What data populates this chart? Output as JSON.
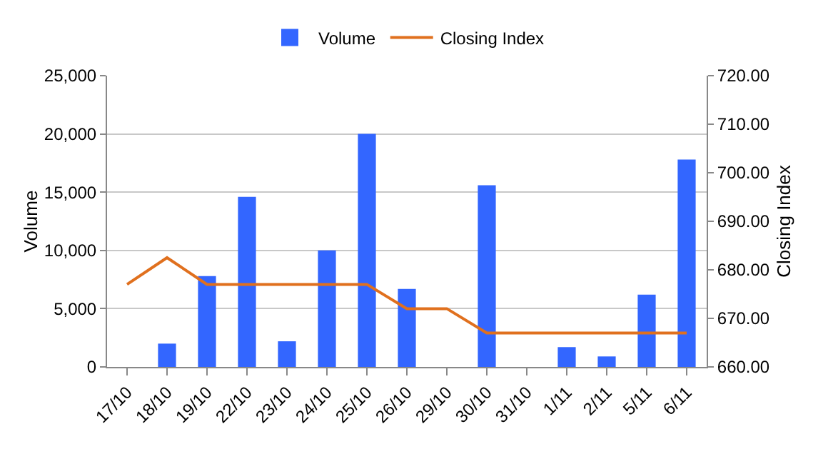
{
  "chart_data": {
    "type": "bar",
    "categories": [
      "17/10",
      "18/10",
      "19/10",
      "22/10",
      "23/10",
      "24/10",
      "25/10",
      "26/10",
      "29/10",
      "30/10",
      "31/10",
      "1/11",
      "2/11",
      "5/11",
      "6/11"
    ],
    "series": [
      {
        "name": "Volume",
        "color": "#3366ff",
        "values": [
          0,
          2000,
          7800,
          14600,
          2200,
          10000,
          20000,
          6700,
          0,
          15600,
          0,
          1700,
          900,
          6200,
          17800
        ]
      },
      {
        "name": "Closing Index",
        "type": "line",
        "axis": "y2",
        "color": "#e0701e",
        "values": [
          677,
          682.5,
          677,
          677,
          677,
          677,
          677,
          672,
          672,
          667,
          667,
          667,
          667,
          667,
          667
        ]
      }
    ],
    "ylabel": "Volume",
    "y2label": "Closing Index",
    "ylim": [
      0,
      25000
    ],
    "yticks": [
      0,
      {
        "value": 5000,
        "label": "5,000"
      },
      {
        "value": 10000,
        "label": "10,000"
      },
      {
        "value": 15000,
        "label": "15,000"
      },
      {
        "value": 20000,
        "label": "20,000"
      },
      {
        "value": 25000,
        "label": "25,000"
      }
    ],
    "y2lim": [
      660,
      720
    ],
    "y2ticks": [
      {
        "value": 660,
        "label": "660.00"
      },
      {
        "value": 670,
        "label": "670.00"
      },
      {
        "value": 680,
        "label": "680.00"
      },
      {
        "value": 690,
        "label": "690.00"
      },
      {
        "value": 700,
        "label": "700.00"
      },
      {
        "value": 710,
        "label": "710.00"
      },
      {
        "value": 720,
        "label": "720.00"
      }
    ],
    "grid": "y",
    "legend": "top",
    "marker": "none",
    "line_style": "solid"
  }
}
